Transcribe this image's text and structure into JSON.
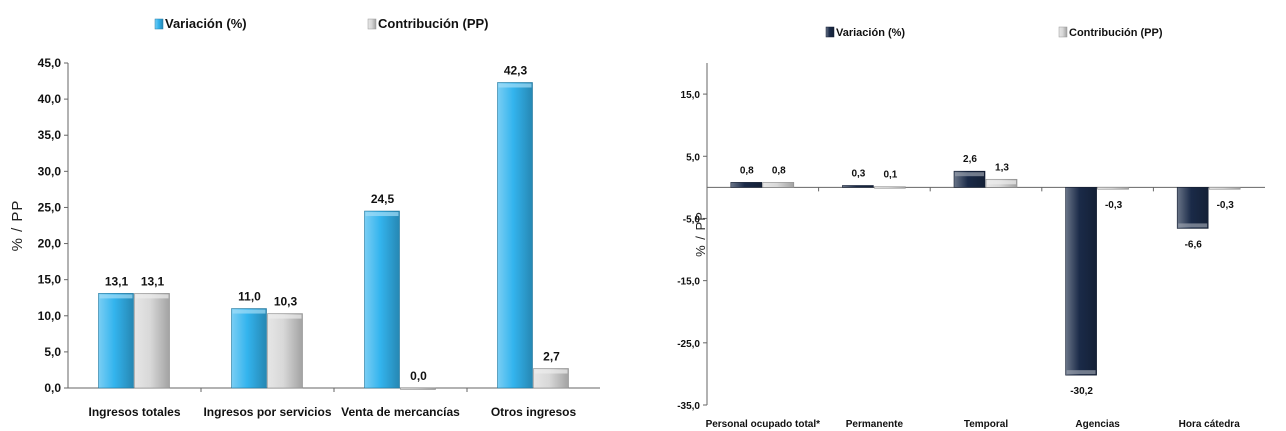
{
  "chart_data": [
    {
      "type": "bar",
      "categories": [
        "Ingresos totales",
        "Ingresos por servicios",
        "Venta de mercancías",
        "Otros ingresos"
      ],
      "series": [
        {
          "name": "Variación (%)",
          "values": [
            13.1,
            11.0,
            24.5,
            42.3
          ],
          "labels": [
            "13,1",
            "11,0",
            "24,5",
            "42,3"
          ],
          "color": "#33b4ee"
        },
        {
          "name": "Contribución (PP)",
          "values": [
            13.1,
            10.3,
            0.0,
            2.7
          ],
          "labels": [
            "13,1",
            "10,3",
            "0,0",
            "2,7"
          ],
          "color": "#d8d8d8"
        }
      ],
      "ylabel": "% / PP",
      "ylim": [
        0,
        45
      ],
      "yticks": [
        0,
        5,
        10,
        15,
        20,
        25,
        30,
        35,
        40,
        45
      ],
      "yticklabels": [
        "0,0",
        "5,0",
        "10,0",
        "15,0",
        "20,0",
        "25,0",
        "30,0",
        "35,0",
        "40,0",
        "45,0"
      ],
      "legend_position": "top",
      "grid": false
    },
    {
      "type": "bar",
      "categories": [
        "Personal ocupado total*",
        "Permanente",
        "Temporal",
        "Agencias",
        "Hora cátedra"
      ],
      "series": [
        {
          "name": "Variación (%)",
          "values": [
            0.8,
            0.3,
            2.6,
            -30.2,
            -6.6
          ],
          "labels": [
            "0,8",
            "0,3",
            "2,6",
            "-30,2",
            "-6,6"
          ],
          "color": "#1a2a48"
        },
        {
          "name": "Contribución (PP)",
          "values": [
            0.8,
            0.1,
            1.3,
            -0.3,
            -0.3
          ],
          "labels": [
            "0,8",
            "0,1",
            "1,3",
            "-0,3",
            "-0,3"
          ],
          "color": "#d8d8d8"
        }
      ],
      "ylabel": "% / PP",
      "ylim": [
        -35,
        20
      ],
      "yticks": [
        -35,
        -25,
        -15,
        -5,
        5,
        15
      ],
      "yticklabels": [
        "-35,0",
        "-25,0",
        "-15,0",
        "-5,0",
        "5,0",
        "15,0"
      ],
      "legend_position": "top",
      "grid": false
    }
  ]
}
